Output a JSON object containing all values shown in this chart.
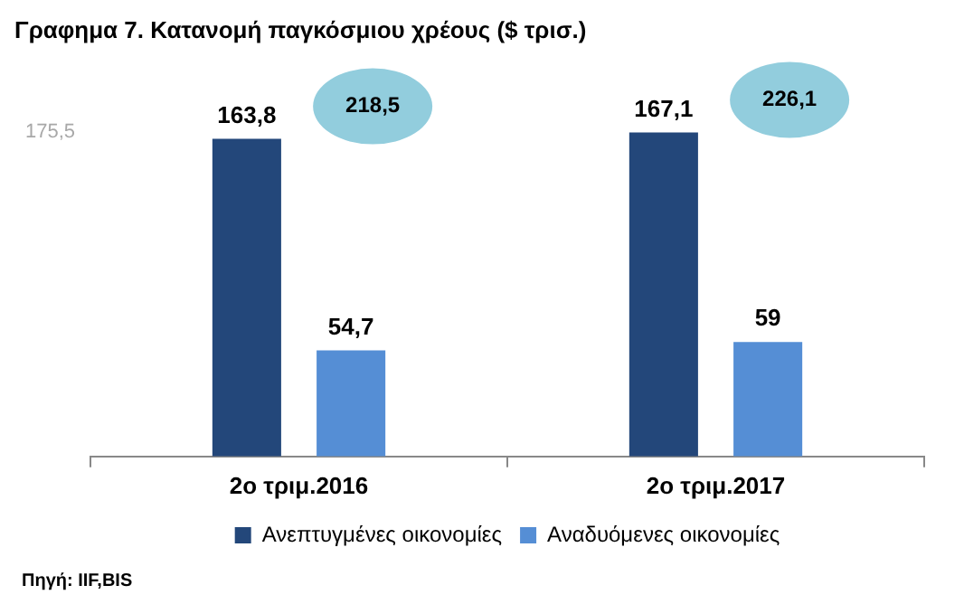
{
  "chart_data": {
    "type": "bar",
    "title": "Γραφημα 7. Κατανομή παγκόσμιου χρέους  ($ τρισ.)",
    "categories": [
      "2ο τριμ.2016",
      "2ο τριμ.2017"
    ],
    "series": [
      {
        "name": "Ανεπτυγμένες οικονομίες",
        "color": "#23477a",
        "values": [
          163.8,
          167.1
        ],
        "value_labels": [
          "163,8",
          "167,1"
        ]
      },
      {
        "name": "Αναδυόμενες οικονομίες",
        "color": "#558ed5",
        "values": [
          54.7,
          59
        ],
        "value_labels": [
          "54,7",
          "59"
        ]
      }
    ],
    "totals": [
      "218,5",
      "226,1"
    ],
    "annotations": [
      "Πηγή: IIF,BIS",
      "175,5"
    ],
    "legend": "bottom"
  }
}
